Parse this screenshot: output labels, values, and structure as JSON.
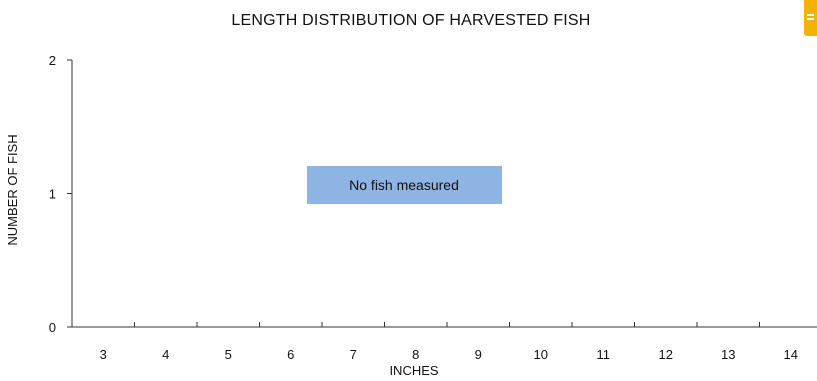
{
  "chart_data": {
    "type": "bar",
    "title": "LENGTH DISTRIBUTION OF HARVESTED FISH",
    "xlabel": "INCHES",
    "ylabel": "NUMBER OF FISH",
    "categories": [
      "3",
      "4",
      "5",
      "6",
      "7",
      "8",
      "9",
      "10",
      "11",
      "12",
      "13",
      "14"
    ],
    "series": [
      {
        "values": [
          0,
          0,
          0,
          0,
          0,
          0,
          0,
          0,
          0,
          0,
          0,
          0
        ]
      }
    ],
    "yticks": [
      0,
      1,
      2
    ],
    "ylim": [
      0,
      2
    ],
    "grid": false,
    "annotation": {
      "text": "No fish measured",
      "color": "#8eb4e3"
    }
  },
  "badge": {
    "color": "#f2b400",
    "icon": "document-icon"
  }
}
